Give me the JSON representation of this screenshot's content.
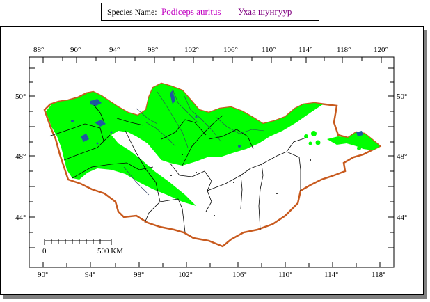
{
  "header": {
    "label": "Species Name:",
    "scientific_name": "Podiceps auritus",
    "local_name": "Ухаа шунгуур"
  },
  "map": {
    "top_ticks": [
      "88°",
      "90°",
      "94°",
      "98°",
      "102°",
      "106°",
      "110°",
      "114°",
      "118°",
      "120°"
    ],
    "bottom_ticks": [
      "90°",
      "94°",
      "98°",
      "102°",
      "106°",
      "110°",
      "114°",
      "118°"
    ],
    "left_ticks": [
      "50°",
      "48°",
      "44°"
    ],
    "right_ticks": [
      "50°",
      "48°",
      "44°"
    ],
    "scale_start": "0",
    "scale_end": "500 KM",
    "colors": {
      "range": "#00ff00",
      "border": "#c85a1e",
      "lakes": "#1e5aa0",
      "land": "#ffffff"
    }
  }
}
